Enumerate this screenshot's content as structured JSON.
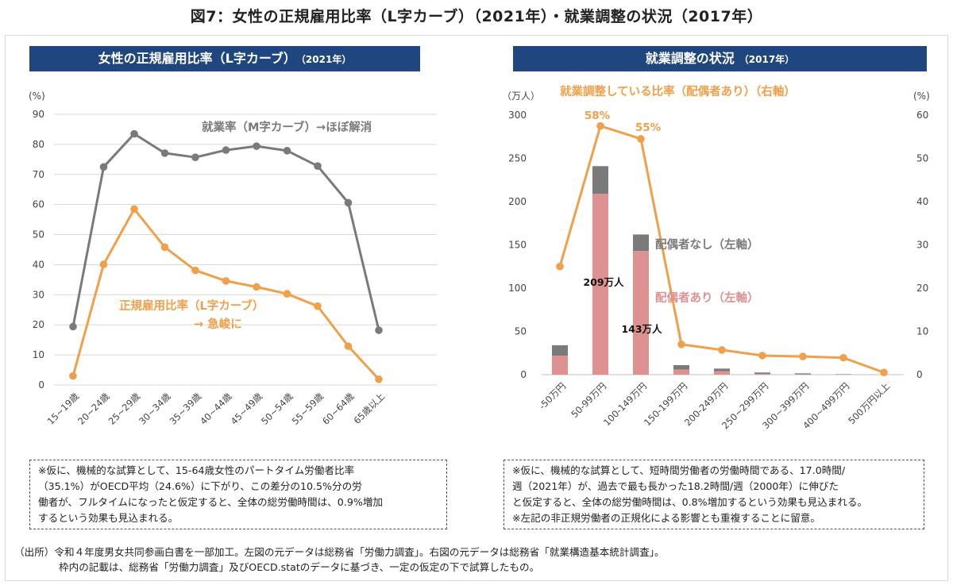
{
  "figure_title": "図7：女性の正規雇用比率（L字カーブ）（2021年）・就業調整の状況（2017年）",
  "left_panel": {
    "title_main": "女性の正規雇用比率（L字カーブ）",
    "title_year": "（2021年）",
    "note": "※仮に、機械的な試算として、15-64歳女性のパートタイム労働者比率\n（35.1%）がOECD平均（24.6%）に下がり、この差分の10.5%分の労\n働者が、フルタイムになったと仮定すると、全体の総労働時間は、0.9%増加\nするという効果も見込まれる。"
  },
  "right_panel": {
    "title_main": "就業調整の状況",
    "title_year": "（2017年）",
    "note": "※仮に、機械的な試算として、短時間労働者の労働時間である、17.0時間/\n週（2021年）が、過去で最も長かった18.2時間/週（2000年）に伸びた\nと仮定すると、全体の総労働時間は、0.8%増加するという効果も見込まれる。\n※左記の非正規労働者の正規化による影響とも重複することに留意。"
  },
  "source": {
    "line1": "（出所）令和４年度男女共同参画白書を一部加工。左図の元データは総務省「労働力調査」。右図の元データは総務省「就業構造基本統計調査」。",
    "line2": "枠内の記載は、総務省「労働力調査」及びOECD.statのデータに基づき、一定の仮定の下で試算したもの。"
  },
  "colors": {
    "banner": "#1f467e",
    "gray_series": "#7a7a7a",
    "orange_series": "#f0a04b",
    "pink_bar": "#de9191",
    "gray_bar": "#7a7a7a",
    "grid": "#d9d9d9"
  },
  "chart_data": [
    {
      "type": "line",
      "title": "女性の正規雇用比率（L字カーブ）（2021年）",
      "y_unit": "(%)",
      "ylim": [
        0,
        90
      ],
      "y_ticks": [
        0,
        10,
        20,
        30,
        40,
        50,
        60,
        70,
        80,
        90
      ],
      "categories": [
        "15~19歳",
        "20~24歳",
        "25~29歳",
        "30~34歳",
        "35~39歳",
        "40~44歳",
        "45~49歳",
        "50~54歳",
        "55~59歳",
        "60~64歳",
        "65歳以上"
      ],
      "series": [
        {
          "name": "就業率（M字カーブ）→ほぼ解消",
          "color": "#7a7a7a",
          "values": [
            19.4,
            72.5,
            83.5,
            77.1,
            75.7,
            78.1,
            79.4,
            77.9,
            72.8,
            60.6,
            18.2
          ]
        },
        {
          "name_lines": [
            "正規雇用比率（L字カーブ）",
            "→  急峻に"
          ],
          "color": "#f0a04b",
          "values": [
            3.0,
            40.1,
            58.5,
            45.8,
            38.1,
            34.6,
            32.6,
            30.3,
            26.2,
            12.9,
            1.9
          ]
        }
      ],
      "grid": true
    },
    {
      "type": "bar",
      "title": "就業調整の状況（2017年）",
      "y_left_unit": "（万人）",
      "y_left_lim": [
        0,
        300
      ],
      "y_left_ticks": [
        0,
        50,
        100,
        150,
        200,
        250,
        300
      ],
      "y_right_unit": "(%)",
      "y_right_lim": [
        0,
        60
      ],
      "y_right_ticks": [
        0,
        10,
        20,
        30,
        40,
        50,
        60
      ],
      "categories": [
        "-50万円",
        "50-99万円",
        "100-149万円",
        "150-199万円",
        "200-249万円",
        "250~299万円",
        "300~399万円",
        "400~499万円",
        "500万円以上"
      ],
      "bar_series": [
        {
          "name": "配偶者あり（左軸）",
          "color": "#de9191",
          "values": [
            22,
            209,
            143,
            6,
            4,
            1,
            0.5,
            0,
            0
          ]
        },
        {
          "name": "配偶者なし（左軸）",
          "color": "#7a7a7a",
          "values": [
            12,
            32,
            19,
            5,
            3,
            1.5,
            1,
            0.5,
            0
          ]
        }
      ],
      "line_series": {
        "name": "就業調整している比率（配偶者あり）（右軸）",
        "color": "#f0a04b",
        "values": [
          25,
          57.5,
          54.5,
          7,
          5.7,
          4.4,
          4.2,
          3.9,
          0.5
        ]
      },
      "annotations": [
        "58%",
        "55%",
        "209万人",
        "143万人"
      ],
      "grid": false
    }
  ]
}
